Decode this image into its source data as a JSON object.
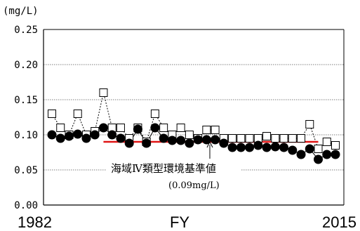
{
  "chart_data": {
    "type": "line",
    "unit_label": "(mg/L)",
    "xlabel": "FY",
    "x_start_label": "1982",
    "x_end_label": "2015",
    "ylim": [
      0.0,
      0.25
    ],
    "yticks": [
      "0.00",
      "0.05",
      "0.10",
      "0.15",
      "0.20",
      "0.25"
    ],
    "grid": true,
    "x": [
      1982,
      1983,
      1984,
      1985,
      1986,
      1987,
      1988,
      1989,
      1990,
      1991,
      1992,
      1993,
      1994,
      1995,
      1996,
      1997,
      1998,
      1999,
      2000,
      2001,
      2002,
      2003,
      2004,
      2005,
      2006,
      2007,
      2008,
      2009,
      2010,
      2011,
      2012,
      2013,
      2014,
      2015
    ],
    "series": [
      {
        "marker": "open-square",
        "line": "dashed",
        "values": [
          0.13,
          0.11,
          0.1,
          0.13,
          0.1,
          0.105,
          0.16,
          0.11,
          0.11,
          0.095,
          0.11,
          0.09,
          0.13,
          0.11,
          0.1,
          0.11,
          0.1,
          0.095,
          0.107,
          0.107,
          0.095,
          0.095,
          0.095,
          0.095,
          0.095,
          0.098,
          0.095,
          0.095,
          0.095,
          0.095,
          0.115,
          0.08,
          0.09,
          0.085
        ]
      },
      {
        "marker": "filled-circle",
        "line": "solid",
        "values": [
          0.1,
          0.095,
          0.098,
          0.101,
          0.095,
          0.1,
          0.11,
          0.1,
          0.095,
          0.088,
          0.108,
          0.088,
          0.11,
          0.095,
          0.092,
          0.092,
          0.088,
          0.093,
          0.093,
          0.093,
          0.088,
          0.082,
          0.082,
          0.082,
          0.085,
          0.082,
          0.083,
          0.082,
          0.078,
          0.072,
          0.08,
          0.065,
          0.072,
          0.072
        ]
      }
    ],
    "reference_line": {
      "value": 0.09,
      "x_from": 1988,
      "x_to": 2013,
      "color": "#e01414",
      "label": "海域Ⅳ類型環境基準値",
      "value_label": "(0.09mg/L)"
    }
  }
}
